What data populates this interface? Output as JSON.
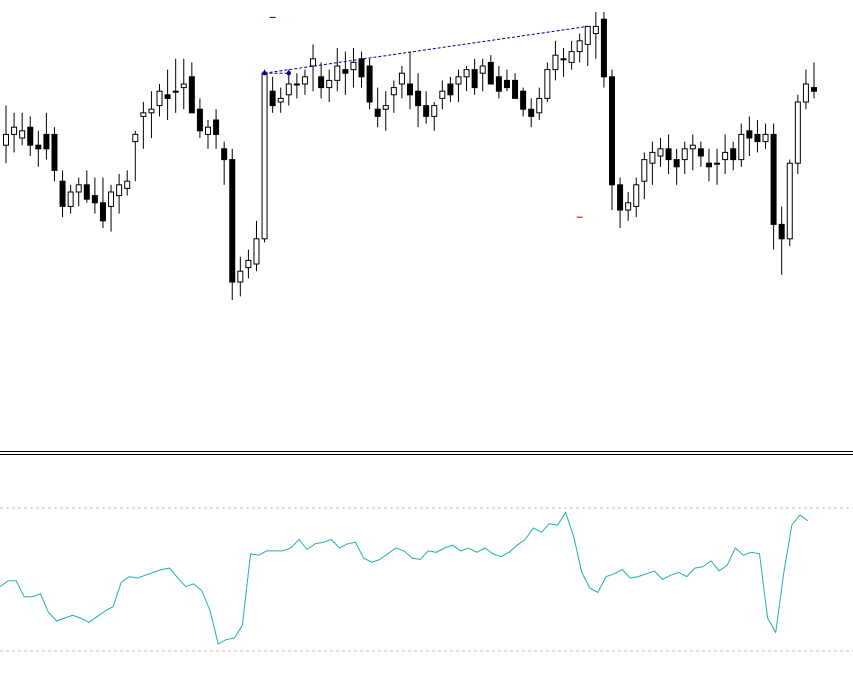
{
  "chart_data": [
    {
      "type": "candlestick",
      "title": "",
      "colors": {
        "bull_fill": "#ffffff",
        "bear_fill": "#000000",
        "wick": "#000000"
      },
      "ylim": [
        0,
        100
      ],
      "candles": [
        {
          "o": 63,
          "h": 74,
          "l": 58,
          "c": 66
        },
        {
          "o": 66,
          "h": 72,
          "l": 61,
          "c": 68
        },
        {
          "o": 65,
          "h": 72,
          "l": 63,
          "c": 67
        },
        {
          "o": 68,
          "h": 71,
          "l": 60,
          "c": 63
        },
        {
          "o": 63,
          "h": 67,
          "l": 57,
          "c": 62
        },
        {
          "o": 66,
          "h": 72,
          "l": 59,
          "c": 62
        },
        {
          "o": 66,
          "h": 68,
          "l": 53,
          "c": 56
        },
        {
          "o": 53,
          "h": 56,
          "l": 43,
          "c": 46
        },
        {
          "o": 46,
          "h": 52,
          "l": 44,
          "c": 50
        },
        {
          "o": 50,
          "h": 54,
          "l": 46,
          "c": 52
        },
        {
          "o": 52,
          "h": 56,
          "l": 47,
          "c": 48
        },
        {
          "o": 49,
          "h": 54,
          "l": 44,
          "c": 47
        },
        {
          "o": 47,
          "h": 54,
          "l": 40,
          "c": 42
        },
        {
          "o": 46,
          "h": 52,
          "l": 39,
          "c": 50
        },
        {
          "o": 49,
          "h": 55,
          "l": 44,
          "c": 52
        },
        {
          "o": 51,
          "h": 56,
          "l": 49,
          "c": 53
        },
        {
          "o": 64,
          "h": 67,
          "l": 53,
          "c": 66
        },
        {
          "o": 71,
          "h": 75,
          "l": 62,
          "c": 72
        },
        {
          "o": 72,
          "h": 78,
          "l": 65,
          "c": 73
        },
        {
          "o": 74,
          "h": 80,
          "l": 71,
          "c": 78
        },
        {
          "o": 77,
          "h": 84,
          "l": 70,
          "c": 76
        },
        {
          "o": 78,
          "h": 87,
          "l": 72,
          "c": 78
        },
        {
          "o": 79,
          "h": 87,
          "l": 73,
          "c": 80
        },
        {
          "o": 82,
          "h": 86,
          "l": 73,
          "c": 72
        },
        {
          "o": 73,
          "h": 76,
          "l": 65,
          "c": 67
        },
        {
          "o": 66,
          "h": 70,
          "l": 62,
          "c": 68
        },
        {
          "o": 70,
          "h": 73,
          "l": 62,
          "c": 66
        },
        {
          "o": 62,
          "h": 64,
          "l": 52,
          "c": 59
        },
        {
          "o": 59,
          "h": 62,
          "l": 20,
          "c": 25
        },
        {
          "o": 25,
          "h": 32,
          "l": 21,
          "c": 28
        },
        {
          "o": 29,
          "h": 34,
          "l": 26,
          "c": 31
        },
        {
          "o": 30,
          "h": 42,
          "l": 28,
          "c": 37
        },
        {
          "o": 37,
          "h": 84,
          "l": 36,
          "c": 83
        },
        {
          "o": 78,
          "h": 82,
          "l": 72,
          "c": 74
        },
        {
          "o": 75,
          "h": 79,
          "l": 72,
          "c": 76
        },
        {
          "o": 77,
          "h": 84,
          "l": 74,
          "c": 80
        },
        {
          "o": 80,
          "h": 83,
          "l": 76,
          "c": 80
        },
        {
          "o": 80,
          "h": 84,
          "l": 77,
          "c": 82
        },
        {
          "o": 85,
          "h": 91,
          "l": 78,
          "c": 87
        },
        {
          "o": 82,
          "h": 86,
          "l": 76,
          "c": 79
        },
        {
          "o": 79,
          "h": 84,
          "l": 75,
          "c": 81
        },
        {
          "o": 81,
          "h": 90,
          "l": 78,
          "c": 85
        },
        {
          "o": 84,
          "h": 89,
          "l": 77,
          "c": 83
        },
        {
          "o": 84,
          "h": 90,
          "l": 79,
          "c": 86
        },
        {
          "o": 87,
          "h": 89,
          "l": 79,
          "c": 82
        },
        {
          "o": 85,
          "h": 87,
          "l": 73,
          "c": 75
        },
        {
          "o": 73,
          "h": 79,
          "l": 68,
          "c": 71
        },
        {
          "o": 73,
          "h": 78,
          "l": 67,
          "c": 74
        },
        {
          "o": 77,
          "h": 81,
          "l": 72,
          "c": 79
        },
        {
          "o": 80,
          "h": 85,
          "l": 76,
          "c": 83
        },
        {
          "o": 80,
          "h": 89,
          "l": 73,
          "c": 77
        },
        {
          "o": 78,
          "h": 83,
          "l": 68,
          "c": 74
        },
        {
          "o": 74,
          "h": 78,
          "l": 69,
          "c": 71
        },
        {
          "o": 71,
          "h": 75,
          "l": 67,
          "c": 74
        },
        {
          "o": 76,
          "h": 81,
          "l": 73,
          "c": 78
        },
        {
          "o": 80,
          "h": 82,
          "l": 75,
          "c": 77
        },
        {
          "o": 80,
          "h": 84,
          "l": 75,
          "c": 82
        },
        {
          "o": 82,
          "h": 85,
          "l": 78,
          "c": 84
        },
        {
          "o": 84,
          "h": 87,
          "l": 77,
          "c": 79
        },
        {
          "o": 83,
          "h": 87,
          "l": 78,
          "c": 85
        },
        {
          "o": 86,
          "h": 88,
          "l": 80,
          "c": 80
        },
        {
          "o": 82,
          "h": 85,
          "l": 76,
          "c": 78
        },
        {
          "o": 81,
          "h": 84,
          "l": 78,
          "c": 79
        },
        {
          "o": 81,
          "h": 83,
          "l": 76,
          "c": 76
        },
        {
          "o": 78,
          "h": 79,
          "l": 71,
          "c": 73
        },
        {
          "o": 73,
          "h": 76,
          "l": 68,
          "c": 71
        },
        {
          "o": 72,
          "h": 79,
          "l": 70,
          "c": 76
        },
        {
          "o": 76,
          "h": 86,
          "l": 75,
          "c": 84
        },
        {
          "o": 84,
          "h": 92,
          "l": 81,
          "c": 88
        },
        {
          "o": 87,
          "h": 90,
          "l": 82,
          "c": 87
        },
        {
          "o": 86,
          "h": 92,
          "l": 84,
          "c": 89
        },
        {
          "o": 89,
          "h": 94,
          "l": 86,
          "c": 92
        },
        {
          "o": 91,
          "h": 95,
          "l": 85,
          "c": 96
        },
        {
          "o": 94,
          "h": 100,
          "l": 87,
          "c": 96
        },
        {
          "o": 98,
          "h": 100,
          "l": 79,
          "c": 82
        },
        {
          "o": 82,
          "h": 84,
          "l": 45,
          "c": 52
        },
        {
          "o": 52,
          "h": 54,
          "l": 40,
          "c": 45
        },
        {
          "o": 45,
          "h": 50,
          "l": 42,
          "c": 47
        },
        {
          "o": 46,
          "h": 54,
          "l": 43,
          "c": 52
        },
        {
          "o": 53,
          "h": 61,
          "l": 48,
          "c": 59
        },
        {
          "o": 58,
          "h": 64,
          "l": 52,
          "c": 61
        },
        {
          "o": 60,
          "h": 65,
          "l": 57,
          "c": 62
        },
        {
          "o": 62,
          "h": 66,
          "l": 55,
          "c": 59
        },
        {
          "o": 59,
          "h": 62,
          "l": 52,
          "c": 57
        },
        {
          "o": 59,
          "h": 64,
          "l": 55,
          "c": 62
        },
        {
          "o": 62,
          "h": 66,
          "l": 56,
          "c": 63
        },
        {
          "o": 62,
          "h": 64,
          "l": 57,
          "c": 60
        },
        {
          "o": 58,
          "h": 62,
          "l": 53,
          "c": 57
        },
        {
          "o": 58,
          "h": 62,
          "l": 52,
          "c": 58
        },
        {
          "o": 59,
          "h": 66,
          "l": 55,
          "c": 61
        },
        {
          "o": 62,
          "h": 64,
          "l": 56,
          "c": 59
        },
        {
          "o": 59,
          "h": 69,
          "l": 57,
          "c": 66
        },
        {
          "o": 67,
          "h": 71,
          "l": 60,
          "c": 65
        },
        {
          "o": 66,
          "h": 70,
          "l": 61,
          "c": 64
        },
        {
          "o": 64,
          "h": 69,
          "l": 62,
          "c": 66
        },
        {
          "o": 66,
          "h": 69,
          "l": 34,
          "c": 41
        },
        {
          "o": 41,
          "h": 46,
          "l": 27,
          "c": 37
        },
        {
          "o": 37,
          "h": 59,
          "l": 35,
          "c": 58
        },
        {
          "o": 58,
          "h": 77,
          "l": 55,
          "c": 75
        },
        {
          "o": 75,
          "h": 84,
          "l": 73,
          "c": 80
        },
        {
          "o": 79,
          "h": 86,
          "l": 76,
          "c": 78
        }
      ],
      "trendline": {
        "color": "#00008b",
        "from_index": 32,
        "to_index": 72,
        "from_value": 83,
        "to_value": 96
      },
      "horizontal_segment": {
        "color": "#00008b",
        "from_index": 32,
        "to_index": 35,
        "value": 83
      },
      "markers": [
        {
          "index": 33,
          "value": 98.5,
          "color": "#00008b"
        },
        {
          "index": 71,
          "value": 43,
          "color": "#cc0000"
        }
      ]
    },
    {
      "type": "line",
      "title": "",
      "ylim": [
        0,
        100
      ],
      "color": "#20b2aa",
      "levels": [
        100,
        0
      ],
      "level_color": "#c0c0c0",
      "values": [
        45,
        49,
        49,
        38,
        38,
        40,
        27,
        21,
        23,
        25,
        23,
        20,
        24,
        28,
        31,
        48,
        52,
        51,
        53,
        55,
        57,
        58,
        51,
        45,
        47,
        42,
        28,
        5,
        8,
        9,
        18,
        68,
        67,
        70,
        70,
        70,
        72,
        78,
        71,
        75,
        76,
        78,
        72,
        75,
        76,
        65,
        62,
        64,
        68,
        72,
        70,
        65,
        64,
        70,
        69,
        72,
        74,
        70,
        72,
        69,
        72,
        68,
        66,
        69,
        74,
        78,
        86,
        83,
        89,
        88,
        97,
        80,
        55,
        44,
        41,
        52,
        54,
        57,
        51,
        52,
        54,
        56,
        50,
        53,
        55,
        52,
        58,
        59,
        63,
        56,
        60,
        72,
        67,
        69,
        68,
        23,
        13,
        55,
        88,
        95,
        91
      ]
    }
  ]
}
